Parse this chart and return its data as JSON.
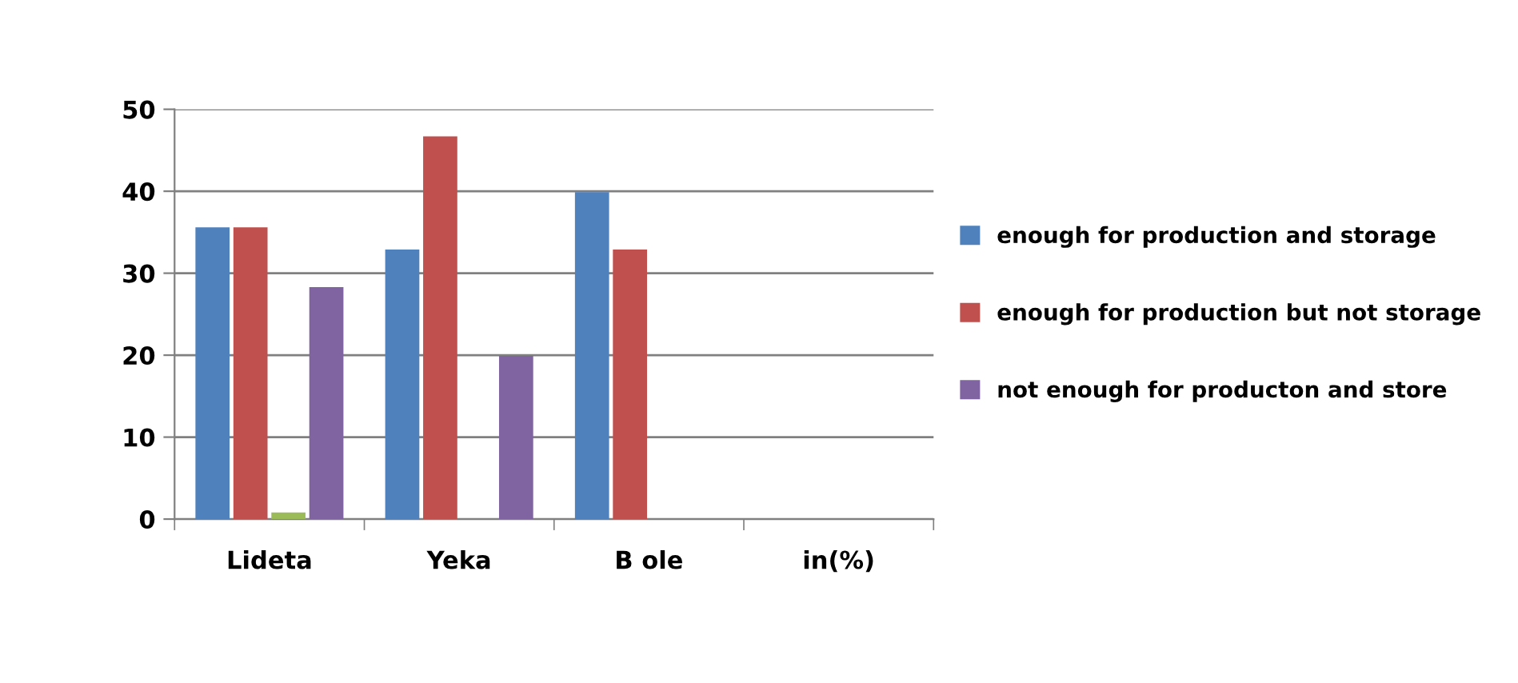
{
  "chart_data": {
    "type": "bar",
    "categories": [
      "Lideta",
      "Yeka",
      "B ole",
      "in(%)"
    ],
    "series": [
      {
        "name": "enough for production and storage",
        "color": "#4f81bd",
        "values": [
          35.6,
          32.9,
          39.9,
          null
        ]
      },
      {
        "name": "enough for production but not storage",
        "color": "#c0504d",
        "values": [
          35.6,
          46.7,
          32.9,
          null
        ]
      },
      {
        "color": "#9bbb59",
        "values": [
          0.8,
          null,
          null,
          null
        ]
      },
      {
        "name": "not enough for producton and store",
        "color": "#8064a2",
        "values": [
          28.3,
          19.9,
          null,
          null
        ]
      }
    ],
    "ylim": [
      0,
      50
    ],
    "yticks": [
      0,
      10,
      20,
      30,
      40,
      50
    ],
    "grid": "y",
    "legend": "right"
  }
}
